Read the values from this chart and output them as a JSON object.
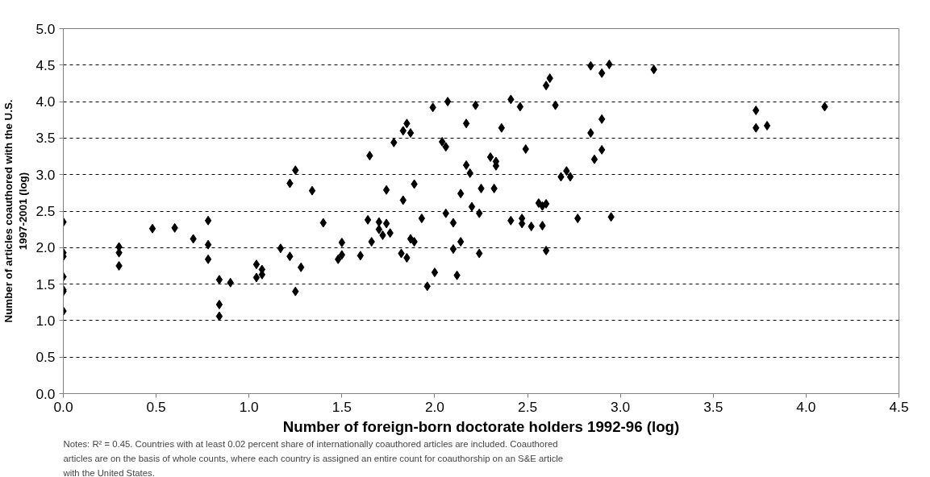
{
  "chart_data": {
    "type": "scatter",
    "xlabel": "Number of foreign-born doctorate holders 1992-96 (log)",
    "ylabel": "Number of articles coauthored with the U.S. 1997-2001 (log)",
    "annotations": [
      "Notes: R² = 0.45. Countries with at least 0.02 percent share of internationally coauthored articles are included. Coauthored articles are on the basis of whole counts, where each country is assigned an entire count for coauthorship on an S&E article with the United States."
    ],
    "marker": "diamond",
    "grid": "y",
    "xlim": [
      0,
      4.5
    ],
    "ylim": [
      0,
      5
    ],
    "xticks": [
      {
        "value": 0,
        "label": "0.0"
      },
      {
        "value": 0.5,
        "label": "0.5"
      },
      {
        "value": 1,
        "label": "1.0"
      },
      {
        "value": 1.5,
        "label": "1.5"
      },
      {
        "value": 2,
        "label": "2.0"
      },
      {
        "value": 2.5,
        "label": "2.5"
      },
      {
        "value": 3,
        "label": "3.0"
      },
      {
        "value": 3.5,
        "label": "3.5"
      },
      {
        "value": 4,
        "label": "4.0"
      },
      {
        "value": 4.5,
        "label": "4.5"
      }
    ],
    "yticks": [
      {
        "value": 0,
        "label": "0.0"
      },
      {
        "value": 0.5,
        "label": "0.5"
      },
      {
        "value": 1,
        "label": "1.0"
      },
      {
        "value": 1.5,
        "label": "1.5"
      },
      {
        "value": 2,
        "label": "2.0"
      },
      {
        "value": 2.5,
        "label": "2.5"
      },
      {
        "value": 3,
        "label": "3.0"
      },
      {
        "value": 3.5,
        "label": "3.5"
      },
      {
        "value": 4,
        "label": "4.0"
      },
      {
        "value": 4.5,
        "label": "4.5"
      },
      {
        "value": 5,
        "label": "5.0"
      }
    ],
    "series": [
      {
        "color": "#000000",
        "x": [
          0,
          0,
          0,
          0,
          0,
          0,
          0,
          0.3,
          0.3,
          0.3,
          0.48,
          0.6,
          0.7,
          0.78,
          0.78,
          0.78,
          0.84,
          0.84,
          0.84,
          0.9,
          1.04,
          1.04,
          1.07,
          1.07,
          1.17,
          1.22,
          1.22,
          1.25,
          1.25,
          1.28,
          1.34,
          1.4,
          1.48,
          1.5,
          1.5,
          1.6,
          1.64,
          1.65,
          1.66,
          1.7,
          1.7,
          1.72,
          1.74,
          1.74,
          1.76,
          1.78,
          1.82,
          1.83,
          1.83,
          1.85,
          1.85,
          1.87,
          1.87,
          1.89,
          1.89,
          1.93,
          1.96,
          1.99,
          2.0,
          2.04,
          2.06,
          2.06,
          2.07,
          2.1,
          2.1,
          2.12,
          2.14,
          2.14,
          2.17,
          2.17,
          2.19,
          2.2,
          2.22,
          2.24,
          2.24,
          2.25,
          2.3,
          2.32,
          2.33,
          2.33,
          2.36,
          2.41,
          2.41,
          2.46,
          2.47,
          2.47,
          2.49,
          2.52,
          2.56,
          2.58,
          2.58,
          2.6,
          2.6,
          2.6,
          2.62,
          2.65,
          2.68,
          2.71,
          2.73,
          2.77,
          2.84,
          2.84,
          2.86,
          2.9,
          2.9,
          2.9,
          2.94,
          2.95,
          3.18,
          3.73,
          3.73,
          3.79,
          4.1
        ],
        "values": [
          2.35,
          1.93,
          1.88,
          1.6,
          1.42,
          1.4,
          1.13,
          2.01,
          1.93,
          1.75,
          2.26,
          2.27,
          2.12,
          2.37,
          2.04,
          1.84,
          1.56,
          1.22,
          1.06,
          1.52,
          1.77,
          1.59,
          1.7,
          1.63,
          1.99,
          2.88,
          1.88,
          3.06,
          1.4,
          1.73,
          2.78,
          2.34,
          1.84,
          2.07,
          1.9,
          1.89,
          2.38,
          3.26,
          2.08,
          2.35,
          2.25,
          2.17,
          2.33,
          2.79,
          2.2,
          3.44,
          1.92,
          2.65,
          3.6,
          3.7,
          1.86,
          3.57,
          2.12,
          2.87,
          2.08,
          2.4,
          1.47,
          3.92,
          1.66,
          3.45,
          3.38,
          2.47,
          4.0,
          1.98,
          2.34,
          1.62,
          2.74,
          2.08,
          3.13,
          3.7,
          3.02,
          2.56,
          3.95,
          2.47,
          1.92,
          2.81,
          3.24,
          2.81,
          3.12,
          3.18,
          3.64,
          4.03,
          2.37,
          3.93,
          2.4,
          2.33,
          3.35,
          2.29,
          2.61,
          2.57,
          2.3,
          4.22,
          2.6,
          1.96,
          4.32,
          3.95,
          2.97,
          3.05,
          2.97,
          2.4,
          4.49,
          3.57,
          3.21,
          4.39,
          3.76,
          3.34,
          4.51,
          2.42,
          4.44,
          3.88,
          3.64,
          3.67,
          3.93
        ]
      }
    ]
  }
}
